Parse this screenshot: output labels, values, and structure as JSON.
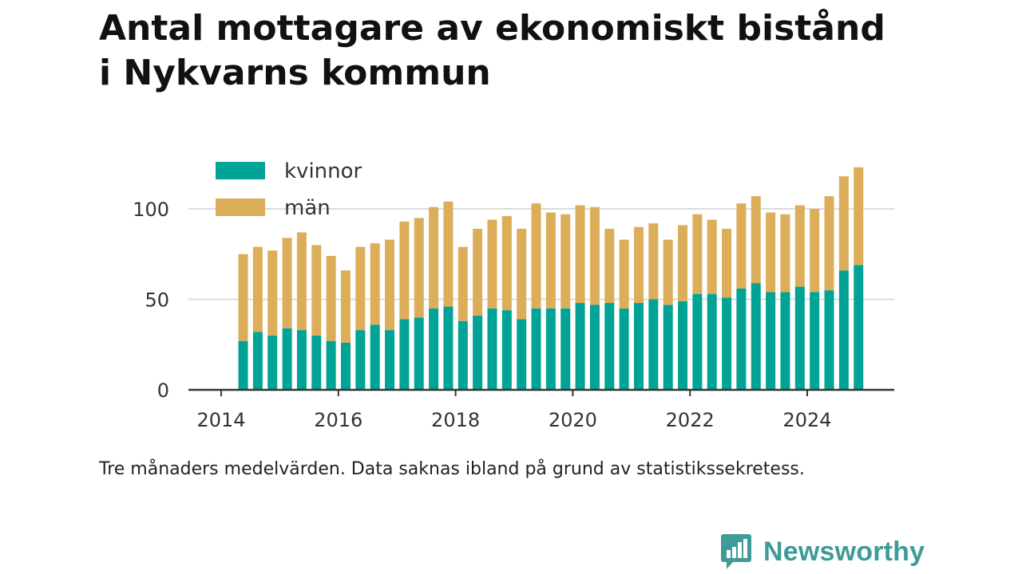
{
  "title_line1": "Antal mottagare av ekonomiskt bistånd",
  "title_line2": "i Nykvarns kommun",
  "caption": "Tre månaders medelvärden. Data saknas ibland på grund av statistikssekretess.",
  "brand": {
    "name": "Newsworthy",
    "color": "#3f9b98",
    "icon": "bar-chart-icon"
  },
  "chart_data": {
    "type": "bar",
    "stacked": true,
    "x_ticks": [
      "2014",
      "2016",
      "2018",
      "2020",
      "2022",
      "2024"
    ],
    "y_ticks": [
      "0",
      "50",
      "100"
    ],
    "ylim": [
      0,
      125
    ],
    "grid": true,
    "legend_position": "top-left",
    "categories": [
      "2014-Q2",
      "2014-Q3",
      "2014-Q4",
      "2015-Q1",
      "2015-Q2",
      "2015-Q3",
      "2015-Q4",
      "2016-Q1",
      "2016-Q2",
      "2016-Q3",
      "2016-Q4",
      "2017-Q1",
      "2017-Q2",
      "2017-Q3",
      "2017-Q4",
      "2018-Q1",
      "2018-Q2",
      "2018-Q3",
      "2018-Q4",
      "2019-Q1",
      "2019-Q2",
      "2019-Q3",
      "2019-Q4",
      "2020-Q1",
      "2020-Q2",
      "2020-Q3",
      "2020-Q4",
      "2021-Q1",
      "2021-Q2",
      "2021-Q3",
      "2021-Q4",
      "2022-Q1",
      "2022-Q2",
      "2022-Q3",
      "2022-Q4",
      "2023-Q1",
      "2023-Q2",
      "2023-Q3",
      "2023-Q4",
      "2024-Q1",
      "2024-Q2",
      "2024-Q3",
      "2024-Q4"
    ],
    "series": [
      {
        "name": "kvinnor",
        "color": "#00a396",
        "values": [
          27,
          32,
          30,
          34,
          33,
          30,
          27,
          26,
          33,
          36,
          33,
          39,
          40,
          45,
          46,
          38,
          41,
          45,
          44,
          39,
          45,
          45,
          45,
          48,
          47,
          48,
          45,
          48,
          50,
          47,
          49,
          53,
          53,
          51,
          56,
          59,
          54,
          54,
          57,
          54,
          55,
          66,
          69
        ]
      },
      {
        "name": "män",
        "color": "#dcae5a",
        "values": [
          48,
          47,
          47,
          50,
          54,
          50,
          47,
          40,
          46,
          45,
          50,
          54,
          55,
          56,
          58,
          41,
          48,
          49,
          52,
          50,
          58,
          53,
          52,
          54,
          54,
          41,
          38,
          42,
          42,
          36,
          42,
          44,
          41,
          38,
          47,
          48,
          44,
          43,
          45,
          46,
          52,
          52,
          54
        ]
      }
    ]
  }
}
